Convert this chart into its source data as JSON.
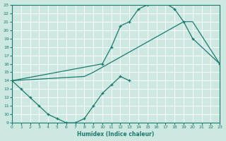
{
  "xlabel": "Humidex (Indice chaleur)",
  "xlim": [
    0,
    23
  ],
  "ylim": [
    9,
    23
  ],
  "xticks": [
    0,
    1,
    2,
    3,
    4,
    5,
    6,
    7,
    8,
    9,
    10,
    11,
    12,
    13,
    14,
    15,
    16,
    17,
    18,
    19,
    20,
    21,
    22,
    23
  ],
  "yticks": [
    9,
    10,
    11,
    12,
    13,
    14,
    15,
    16,
    17,
    18,
    19,
    20,
    21,
    22,
    23
  ],
  "bg_color": "#cce8e0",
  "grid_color": "#ffffff",
  "line_color": "#1a7a6e",
  "upper_x": [
    0,
    10,
    11,
    12,
    13,
    14,
    15,
    16,
    17,
    18,
    19,
    20,
    23
  ],
  "upper_y": [
    14,
    16,
    18,
    20.5,
    21,
    22.5,
    23,
    23.2,
    23.2,
    22.5,
    21,
    19,
    16
  ],
  "mid_x": [
    0,
    8,
    9,
    19,
    20,
    23
  ],
  "mid_y": [
    14,
    14.5,
    15,
    21,
    21,
    16
  ],
  "lower_x": [
    0,
    1,
    2,
    3,
    4,
    5,
    6,
    7,
    8,
    9,
    10,
    11,
    12,
    13
  ],
  "lower_y": [
    14,
    13,
    12,
    11,
    10,
    9.5,
    9,
    9,
    9.5,
    11,
    12.5,
    13.5,
    14.5,
    14
  ]
}
